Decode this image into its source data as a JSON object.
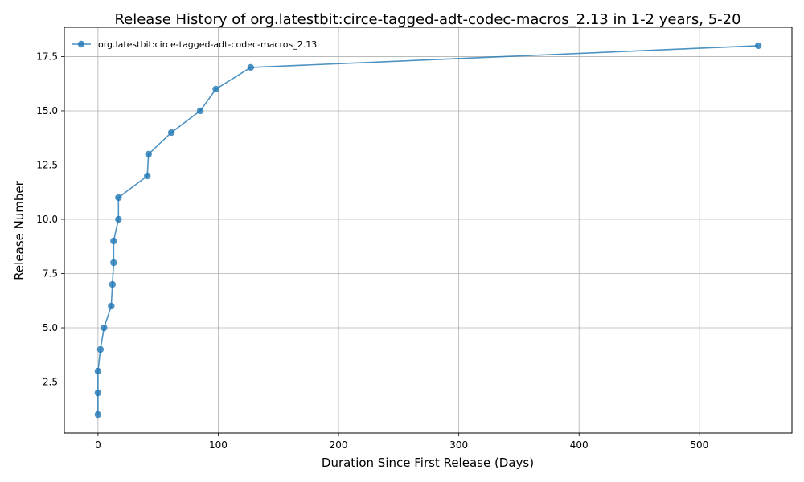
{
  "chart_data": {
    "type": "line",
    "title": "Release History of org.latestbit:circe-tagged-adt-codec-macros_2.13 in 1-2 years, 5-20",
    "xlabel": "Duration Since First Release (Days)",
    "ylabel": "Release Number",
    "xlim": [
      -28,
      577
    ],
    "ylim": [
      0.15,
      18.85
    ],
    "x_ticks": [
      0,
      100,
      200,
      300,
      400,
      500
    ],
    "y_ticks": [
      2.5,
      5.0,
      7.5,
      10.0,
      12.5,
      15.0,
      17.5
    ],
    "x_tick_labels": [
      "0",
      "100",
      "200",
      "300",
      "400",
      "500"
    ],
    "y_tick_labels": [
      "2.5",
      "5.0",
      "7.5",
      "10.0",
      "12.5",
      "15.0",
      "17.5"
    ],
    "grid": true,
    "legend_position": "top-left",
    "colors": {
      "series": "#1f77b4"
    },
    "series": [
      {
        "name": "org.latestbit:circe-tagged-adt-codec-macros_2.13",
        "x": [
          0,
          0,
          0,
          2,
          5,
          11,
          12,
          13,
          13,
          17,
          17,
          41,
          42,
          61,
          85,
          98,
          127,
          549
        ],
        "y": [
          1,
          2,
          3,
          4,
          5,
          6,
          7,
          8,
          9,
          10,
          11,
          12,
          13,
          14,
          15,
          16,
          17,
          18
        ]
      }
    ]
  }
}
